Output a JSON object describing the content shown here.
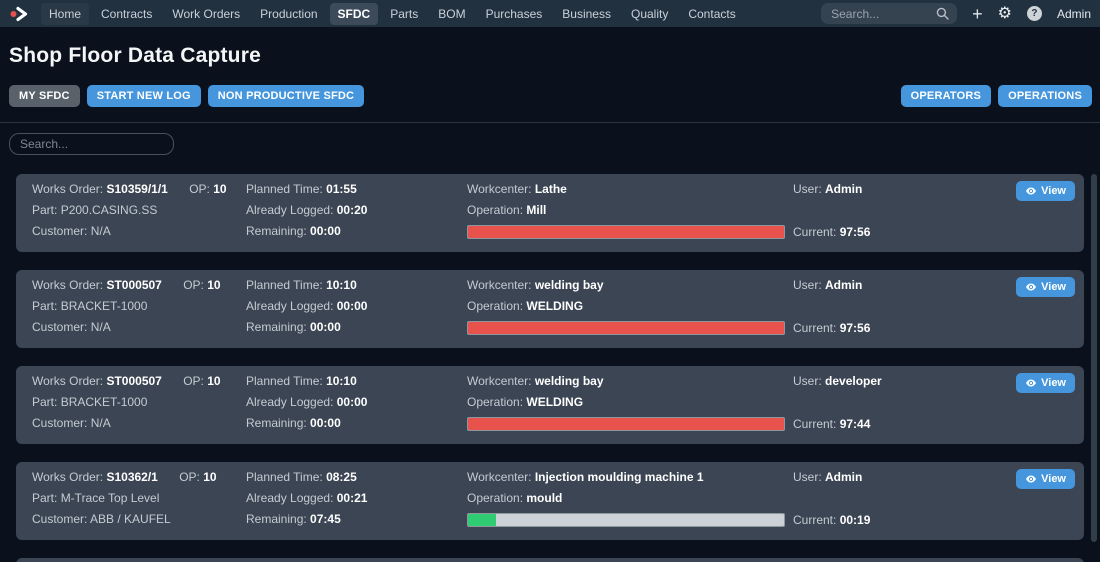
{
  "nav": {
    "items": [
      {
        "label": "Home",
        "state": "subtle"
      },
      {
        "label": "Contracts",
        "state": ""
      },
      {
        "label": "Work Orders",
        "state": ""
      },
      {
        "label": "Production",
        "state": ""
      },
      {
        "label": "SFDC",
        "state": "active"
      },
      {
        "label": "Parts",
        "state": ""
      },
      {
        "label": "BOM",
        "state": ""
      },
      {
        "label": "Purchases",
        "state": ""
      },
      {
        "label": "Business",
        "state": ""
      },
      {
        "label": "Quality",
        "state": ""
      },
      {
        "label": "Contacts",
        "state": ""
      }
    ],
    "search_placeholder": "Search...",
    "user_label": "Admin"
  },
  "page": {
    "title": "Shop Floor Data Capture",
    "buttons_left": [
      {
        "label": "MY SFDC",
        "color": "gray"
      },
      {
        "label": "START NEW LOG",
        "color": "blue"
      },
      {
        "label": "NON PRODUCTIVE SFDC",
        "color": "blue"
      }
    ],
    "buttons_right": [
      {
        "label": "OPERATORS",
        "color": "blue"
      },
      {
        "label": "OPERATIONS",
        "color": "blue"
      }
    ],
    "filter_placeholder": "Search..."
  },
  "labels": {
    "works_order": "Works Order:",
    "op": "OP:",
    "part": "Part:",
    "customer": "Customer:",
    "planned_time": "Planned Time:",
    "already_logged": "Already Logged:",
    "remaining": "Remaining:",
    "workcenter": "Workcenter:",
    "operation": "Operation:",
    "user": "User:",
    "current": "Current:",
    "view": "View"
  },
  "colors": {
    "accent_blue": "#4596dd",
    "button_gray": "#59616a",
    "bar_red": "#e8524c",
    "bar_green": "#2fcc71",
    "bar_track": "#cdd2d8",
    "navbar_bg": "#223140",
    "card_bg": "#3b4553",
    "page_bg": "#0b111c"
  },
  "cards": [
    {
      "works_order": "S10359/1/1",
      "op": "10",
      "part": "P200.CASING.SS",
      "customer": "N/A",
      "planned_time": "01:55",
      "already_logged": "00:20",
      "remaining": "00:00",
      "workcenter": "Lathe",
      "operation": "Mill",
      "user": "Admin",
      "current": "97:56",
      "progress": {
        "percent": 100,
        "color": "red"
      }
    },
    {
      "works_order": "ST000507",
      "op": "10",
      "part": "BRACKET-1000",
      "customer": "N/A",
      "planned_time": "10:10",
      "already_logged": "00:00",
      "remaining": "00:00",
      "workcenter": "welding bay",
      "operation": "WELDING",
      "user": "Admin",
      "current": "97:56",
      "progress": {
        "percent": 100,
        "color": "red"
      }
    },
    {
      "works_order": "ST000507",
      "op": "10",
      "part": "BRACKET-1000",
      "customer": "N/A",
      "planned_time": "10:10",
      "already_logged": "00:00",
      "remaining": "00:00",
      "workcenter": "welding bay",
      "operation": "WELDING",
      "user": "developer",
      "current": "97:44",
      "progress": {
        "percent": 100,
        "color": "red"
      }
    },
    {
      "works_order": "S10362/1",
      "op": "10",
      "part": "M-Trace Top Level",
      "customer": "ABB / KAUFEL",
      "planned_time": "08:25",
      "already_logged": "00:21",
      "remaining": "07:45",
      "workcenter": "Injection moulding machine 1",
      "operation": "mould",
      "user": "Admin",
      "current": "00:19",
      "progress": {
        "percent": 9,
        "color": "green"
      }
    }
  ]
}
